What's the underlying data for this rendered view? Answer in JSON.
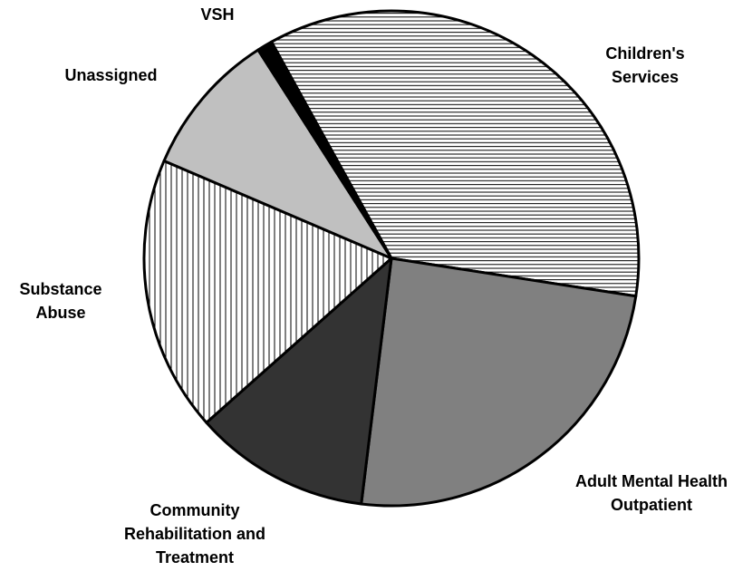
{
  "chart_data": {
    "type": "pie",
    "categories": [
      "Children's Services",
      "Adult Mental Health Outpatient",
      "Community Rehabilitation and Treatment",
      "Substance Abuse",
      "Unassigned",
      "VSH"
    ],
    "values": [
      35.5,
      24.5,
      11.5,
      18,
      9.5,
      1
    ],
    "colors": [
      "#ffffff",
      "#808080",
      "#333333",
      "#ffffff",
      "#c0c0c0",
      "#000000"
    ],
    "patterns": [
      "horizontal-lines",
      "solid",
      "solid",
      "vertical-lines",
      "solid",
      "solid"
    ]
  }
}
